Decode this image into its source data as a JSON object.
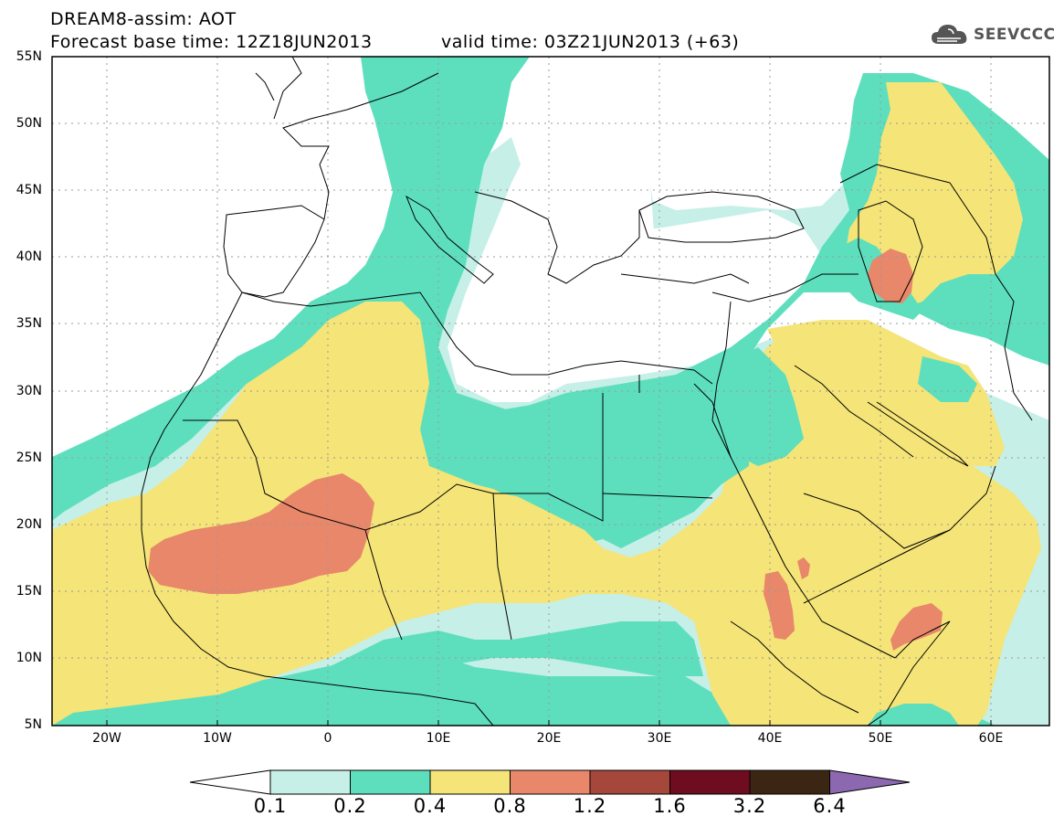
{
  "header": {
    "title_line1": "DREAM8-assim: AOT",
    "title_line2_base": "Forecast base time: 12Z18JUN2013",
    "title_line2_valid": "valid time: 03Z21JUN2013 (+63)",
    "logo_text": "SEEVCCC",
    "logo_icon": "cloud-icon"
  },
  "map": {
    "lon_range": [
      -25,
      65
    ],
    "lat_range": [
      5,
      55
    ],
    "lat_labels": [
      "55N",
      "50N",
      "45N",
      "40N",
      "35N",
      "30N",
      "25N",
      "20N",
      "15N",
      "10N",
      "5N"
    ],
    "lon_labels": [
      "20W",
      "10W",
      "0",
      "10E",
      "20E",
      "30E",
      "40E",
      "50E",
      "60E"
    ],
    "grid": "dotted"
  },
  "legend": {
    "labels": [
      "0.1",
      "0.2",
      "0.4",
      "0.8",
      "1.2",
      "1.6",
      "3.2",
      "6.4"
    ],
    "colors": [
      "#c6efe8",
      "#5ddfbd",
      "#f5e477",
      "#e8876a",
      "#a5473a",
      "#6e0c20",
      "#3b2614",
      "#8c68b0"
    ]
  }
}
